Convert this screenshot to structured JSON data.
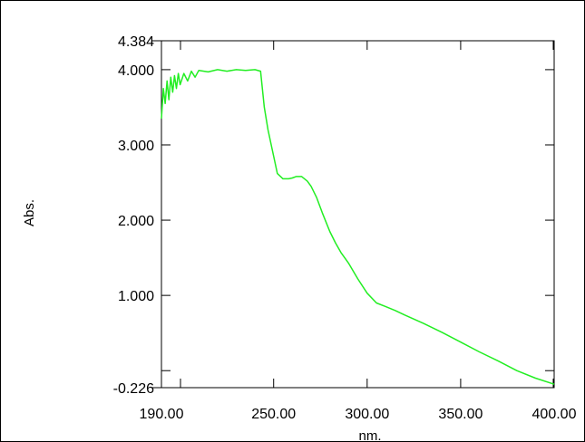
{
  "chart_data": {
    "type": "line",
    "title": "",
    "xlabel": "nm.",
    "ylabel": "Abs.",
    "xlim": [
      190,
      400
    ],
    "ylim": [
      -0.226,
      4.384
    ],
    "grid": false,
    "x_ticks": [
      {
        "value": 190,
        "label": "190.00"
      },
      {
        "value": 250,
        "label": "250.00"
      },
      {
        "value": 300,
        "label": "300.00"
      },
      {
        "value": 350,
        "label": "350.00"
      },
      {
        "value": 400,
        "label": "400.00"
      }
    ],
    "y_ticks": [
      {
        "value": 4.384,
        "label": "4.384"
      },
      {
        "value": 4.0,
        "label": "4.000"
      },
      {
        "value": 3.0,
        "label": "3.000"
      },
      {
        "value": 2.0,
        "label": "2.000"
      },
      {
        "value": 1.0,
        "label": "1.000"
      },
      {
        "value": -0.226,
        "label": "-0.226"
      }
    ],
    "line_color": "#22ee22",
    "series": [
      {
        "x": [
          190,
          191,
          192,
          193,
          194,
          195,
          196,
          197,
          198,
          199,
          200,
          202,
          204,
          206,
          208,
          210,
          215,
          220,
          225,
          230,
          235,
          240,
          243,
          245,
          247,
          250,
          252,
          255,
          258,
          260,
          262,
          265,
          268,
          270,
          273,
          276,
          280,
          283,
          286,
          290,
          295,
          300,
          305,
          310,
          315,
          320,
          330,
          340,
          350,
          360,
          370,
          380,
          390,
          400
        ],
        "y": [
          3.35,
          3.75,
          3.55,
          3.85,
          3.6,
          3.9,
          3.7,
          3.92,
          3.75,
          3.95,
          3.8,
          3.95,
          3.85,
          3.98,
          3.9,
          3.99,
          3.97,
          4.0,
          3.98,
          4.0,
          3.99,
          4.0,
          3.98,
          3.5,
          3.2,
          2.85,
          2.62,
          2.55,
          2.55,
          2.56,
          2.58,
          2.58,
          2.52,
          2.45,
          2.3,
          2.1,
          1.85,
          1.7,
          1.57,
          1.43,
          1.22,
          1.03,
          0.9,
          0.85,
          0.8,
          0.74,
          0.63,
          0.51,
          0.38,
          0.25,
          0.13,
          0.0,
          -0.1,
          -0.18
        ]
      }
    ]
  }
}
